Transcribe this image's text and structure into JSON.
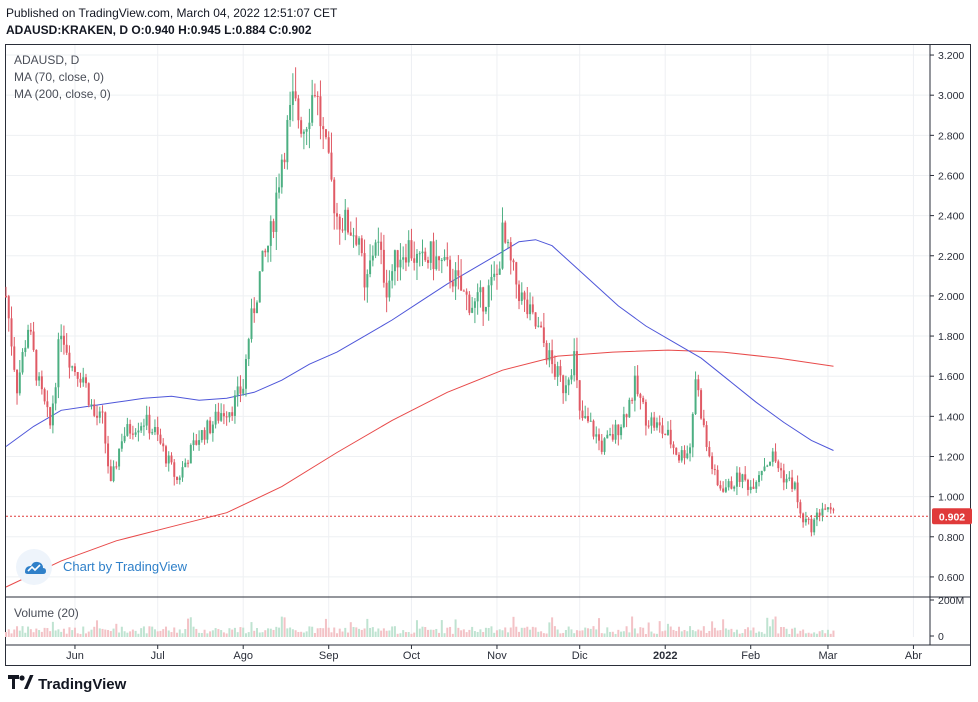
{
  "header": {
    "published": "Published on TradingView.com, March 04, 2022 12:51:07 CET",
    "symbol": "ADAUSD:KRAKEN, D",
    "o_label": "O:",
    "o_val": "0.940",
    "h_label": "H:",
    "h_val": "0.945",
    "l_label": "L:",
    "l_val": "0.884",
    "c_label": "C:",
    "c_val": "0.902"
  },
  "legend": {
    "symbol": "ADAUSD, D",
    "ma70": "MA (70, close, 0)",
    "ma200": "MA (200, close, 0)",
    "volume": "Volume (20)"
  },
  "badge_text": "Chart by TradingView",
  "footer_logo": "TradingView",
  "colors": {
    "up": "#4caf82",
    "down": "#e05a65",
    "ma70": "#4e56d9",
    "ma200": "#e84a4a",
    "last_price": "#e03a3a"
  },
  "chart_data": {
    "type": "candlestick",
    "title": "ADAUSD, D",
    "price_axis": {
      "ylim": [
        0.5,
        3.25
      ],
      "ticks": [
        "3.200",
        "3.000",
        "2.800",
        "2.600",
        "2.400",
        "2.200",
        "2.000",
        "1.800",
        "1.600",
        "1.400",
        "1.200",
        "1.000",
        "0.800",
        "0.600"
      ]
    },
    "volume_axis": {
      "ticks": [
        "200M",
        "0"
      ]
    },
    "x_labels": [
      "Jun",
      "Jul",
      "Ago",
      "Sep",
      "Oct",
      "Nov",
      "Dic",
      "2022",
      "Feb",
      "Mar",
      "Abr"
    ],
    "last_price": "0.902",
    "x_range_days": [
      0,
      335
    ],
    "x_label_days": [
      25,
      55,
      86,
      117,
      147,
      178,
      208,
      239,
      270,
      298,
      329
    ],
    "candle_anchors": [
      [
        0,
        2.0
      ],
      [
        4,
        1.55
      ],
      [
        8,
        1.85
      ],
      [
        12,
        1.55
      ],
      [
        16,
        1.35
      ],
      [
        20,
        1.85
      ],
      [
        24,
        1.65
      ],
      [
        28,
        1.6
      ],
      [
        32,
        1.4
      ],
      [
        35,
        1.38
      ],
      [
        38,
        1.05
      ],
      [
        42,
        1.3
      ],
      [
        46,
        1.35
      ],
      [
        50,
        1.38
      ],
      [
        54,
        1.32
      ],
      [
        58,
        1.2
      ],
      [
        62,
        1.08
      ],
      [
        66,
        1.2
      ],
      [
        70,
        1.3
      ],
      [
        74,
        1.35
      ],
      [
        78,
        1.42
      ],
      [
        82,
        1.45
      ],
      [
        86,
        1.55
      ],
      [
        88,
        1.8
      ],
      [
        92,
        2.1
      ],
      [
        96,
        2.3
      ],
      [
        100,
        2.7
      ],
      [
        104,
        2.95
      ],
      [
        108,
        2.85
      ],
      [
        112,
        3.05
      ],
      [
        116,
        2.7
      ],
      [
        120,
        2.4
      ],
      [
        124,
        2.35
      ],
      [
        128,
        2.3
      ],
      [
        130,
        2.0
      ],
      [
        134,
        2.3
      ],
      [
        138,
        2.05
      ],
      [
        142,
        2.2
      ],
      [
        146,
        2.25
      ],
      [
        150,
        2.15
      ],
      [
        154,
        2.2
      ],
      [
        158,
        2.15
      ],
      [
        162,
        2.1
      ],
      [
        166,
        2.0
      ],
      [
        170,
        1.95
      ],
      [
        174,
        2.0
      ],
      [
        178,
        2.1
      ],
      [
        180,
        2.3
      ],
      [
        184,
        2.1
      ],
      [
        188,
        1.95
      ],
      [
        190,
        1.9
      ],
      [
        194,
        1.8
      ],
      [
        198,
        1.65
      ],
      [
        202,
        1.55
      ],
      [
        206,
        1.7
      ],
      [
        208,
        1.4
      ],
      [
        212,
        1.35
      ],
      [
        216,
        1.25
      ],
      [
        220,
        1.3
      ],
      [
        224,
        1.4
      ],
      [
        228,
        1.55
      ],
      [
        232,
        1.4
      ],
      [
        236,
        1.35
      ],
      [
        240,
        1.3
      ],
      [
        244,
        1.2
      ],
      [
        248,
        1.25
      ],
      [
        250,
        1.6
      ],
      [
        254,
        1.25
      ],
      [
        258,
        1.05
      ],
      [
        262,
        1.05
      ],
      [
        266,
        1.1
      ],
      [
        270,
        1.05
      ],
      [
        274,
        1.15
      ],
      [
        278,
        1.2
      ],
      [
        282,
        1.1
      ],
      [
        286,
        1.05
      ],
      [
        288,
        0.9
      ],
      [
        292,
        0.85
      ],
      [
        296,
        0.95
      ],
      [
        300,
        0.9
      ]
    ],
    "ma70_anchors": [
      [
        0,
        1.25
      ],
      [
        10,
        1.35
      ],
      [
        20,
        1.43
      ],
      [
        30,
        1.45
      ],
      [
        40,
        1.47
      ],
      [
        50,
        1.49
      ],
      [
        60,
        1.5
      ],
      [
        70,
        1.48
      ],
      [
        80,
        1.49
      ],
      [
        90,
        1.52
      ],
      [
        100,
        1.58
      ],
      [
        110,
        1.66
      ],
      [
        120,
        1.72
      ],
      [
        130,
        1.8
      ],
      [
        140,
        1.88
      ],
      [
        150,
        1.97
      ],
      [
        160,
        2.06
      ],
      [
        170,
        2.14
      ],
      [
        180,
        2.22
      ],
      [
        186,
        2.27
      ],
      [
        192,
        2.28
      ],
      [
        198,
        2.25
      ],
      [
        206,
        2.15
      ],
      [
        214,
        2.05
      ],
      [
        222,
        1.95
      ],
      [
        232,
        1.85
      ],
      [
        242,
        1.77
      ],
      [
        252,
        1.69
      ],
      [
        262,
        1.58
      ],
      [
        272,
        1.47
      ],
      [
        282,
        1.37
      ],
      [
        292,
        1.28
      ],
      [
        300,
        1.23
      ]
    ],
    "ma200_anchors": [
      [
        0,
        0.55
      ],
      [
        20,
        0.68
      ],
      [
        40,
        0.78
      ],
      [
        60,
        0.85
      ],
      [
        80,
        0.92
      ],
      [
        100,
        1.05
      ],
      [
        120,
        1.22
      ],
      [
        140,
        1.38
      ],
      [
        160,
        1.52
      ],
      [
        180,
        1.63
      ],
      [
        200,
        1.7
      ],
      [
        220,
        1.72
      ],
      [
        240,
        1.73
      ],
      [
        260,
        1.72
      ],
      [
        280,
        1.69
      ],
      [
        300,
        1.65
      ]
    ]
  }
}
